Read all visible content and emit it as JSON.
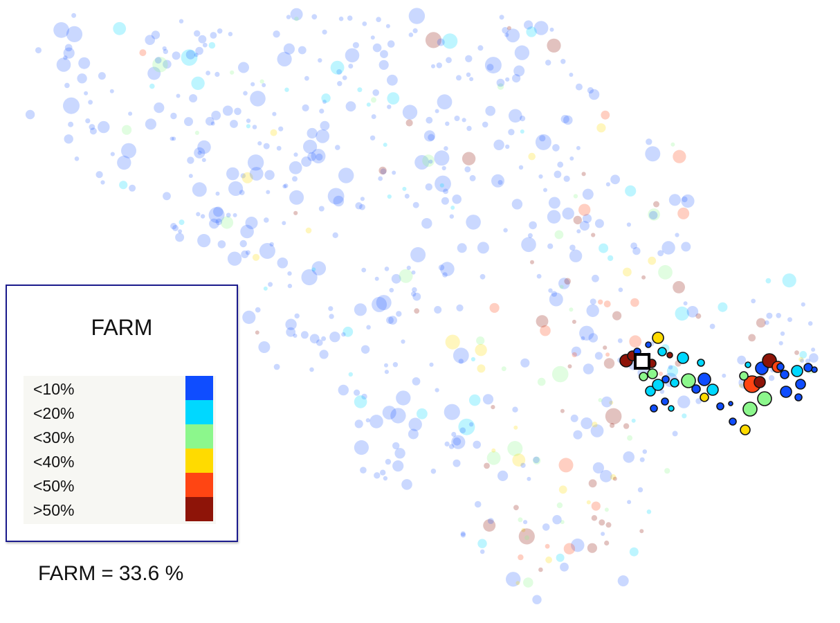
{
  "chart_data": {
    "type": "scatter",
    "title": "",
    "legend": {
      "title": "FARM",
      "placement": "left",
      "bins": [
        {
          "label": "<10%",
          "color": "#0f4dff"
        },
        {
          "label": "<20%",
          "color": "#00d8ff"
        },
        {
          "label": "<30%",
          "color": "#8cf78c"
        },
        {
          "label": "<40%",
          "color": "#ffdb00"
        },
        {
          "label": "<50%",
          "color": "#ff4513"
        },
        {
          "label": ">50%",
          "color": "#8e1408"
        }
      ]
    },
    "summary": {
      "name": "FARM",
      "equals": "=",
      "value": "33.6 %"
    },
    "highlight_marker": "selected-site",
    "grid": false,
    "axes": "none"
  }
}
